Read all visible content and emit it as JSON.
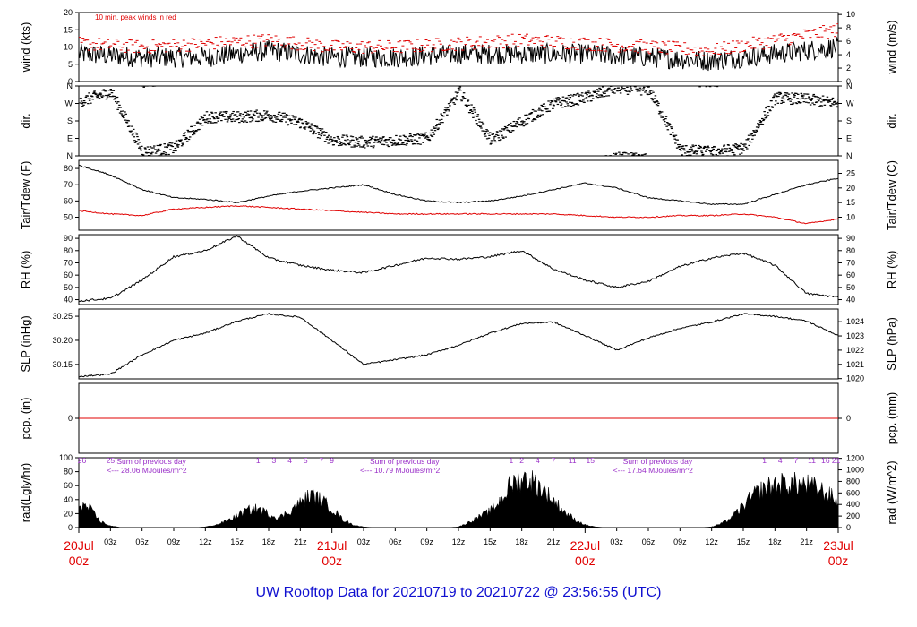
{
  "chart_data": {
    "type": "line",
    "title": "UW Rooftop Data for 20210719  to  20210722 @ 23:56:55  (UTC)",
    "time_axis": {
      "range_hours": [
        0,
        72
      ],
      "hour_ticks": [
        "03z",
        "06z",
        "09z",
        "12z",
        "15z",
        "18z",
        "21z",
        "03z",
        "06z",
        "09z",
        "12z",
        "15z",
        "18z",
        "21z",
        "03z",
        "06z",
        "09z",
        "12z",
        "15z",
        "18z",
        "21z"
      ],
      "day_labels": [
        {
          "date": "20Jul",
          "time": "00z",
          "hour": 0
        },
        {
          "date": "21Jul",
          "time": "00z",
          "hour": 24
        },
        {
          "date": "22Jul",
          "time": "00z",
          "hour": 48
        },
        {
          "date": "23Jul",
          "time": "00z",
          "hour": 72
        }
      ]
    },
    "panels": [
      {
        "id": "wind",
        "ylabel_left": "wind (kts)",
        "ylabel_right": "wind (m/s)",
        "ylim": [
          0,
          20
        ],
        "yticks_left": [
          "0",
          "5",
          "10",
          "15",
          "20"
        ],
        "yticks_right": [
          "0",
          "2",
          "4",
          "6",
          "8",
          "10"
        ],
        "annotation": "10 min. peak winds in red",
        "series": [
          {
            "name": "wind",
            "color": "#000000",
            "style": "noisy",
            "hours": [
              0,
              6,
              12,
              18,
              24,
              30,
              36,
              42,
              48,
              54,
              60,
              66,
              72
            ],
            "values": [
              8,
              7,
              7,
              9,
              7,
              7,
              8,
              8,
              8,
              7,
              6,
              8,
              10
            ]
          },
          {
            "name": "peak",
            "color": "#e00000",
            "style": "dash",
            "hours": [
              0,
              6,
              12,
              18,
              24,
              30,
              36,
              42,
              48,
              54,
              60,
              66,
              72
            ],
            "values": [
              11,
              10,
              11,
              12,
              10,
              10,
              11,
              12,
              11,
              10,
              9,
              12,
              15
            ]
          }
        ]
      },
      {
        "id": "dir",
        "ylabel_left": "dir.",
        "ylabel_right": "dir.",
        "ylim": [
          0,
          360
        ],
        "yticks_left": [
          "N",
          "W",
          "S",
          "E",
          "N"
        ],
        "yticks_right": [
          "N",
          "W",
          "S",
          "E",
          "N"
        ],
        "series": [
          {
            "name": "direction",
            "color": "#000000",
            "style": "scatter",
            "hours": [
              0,
              3,
              6,
              9,
              12,
              15,
              18,
              21,
              24,
              27,
              30,
              33,
              36,
              39,
              42,
              45,
              48,
              51,
              54,
              57,
              60,
              63,
              66,
              69,
              72
            ],
            "values": [
              280,
              330,
              20,
              40,
              200,
              200,
              210,
              170,
              80,
              70,
              80,
              90,
              330,
              80,
              180,
              270,
              300,
              350,
              340,
              30,
              20,
              40,
              300,
              290,
              270
            ]
          }
        ]
      },
      {
        "id": "temp",
        "ylabel_left": "Tair/Tdew (F)",
        "ylabel_right": "Tair/Tdew (C)",
        "ylim": [
          42,
          85
        ],
        "yticks_left": [
          "50",
          "60",
          "70",
          "80"
        ],
        "yticks_right": [
          "10",
          "15",
          "20",
          "25"
        ],
        "series": [
          {
            "name": "Tair",
            "color": "#000000",
            "style": "line",
            "hours": [
              0,
              3,
              6,
              9,
              12,
              15,
              18,
              21,
              24,
              27,
              30,
              33,
              36,
              39,
              42,
              45,
              48,
              51,
              54,
              57,
              60,
              63,
              66,
              69,
              72
            ],
            "values": [
              82,
              76,
              67,
              62,
              61,
              59,
              63,
              66,
              68,
              70,
              64,
              60,
              59,
              60,
              63,
              67,
              71,
              68,
              62,
              60,
              58,
              58,
              64,
              70,
              74
            ]
          },
          {
            "name": "Tdew",
            "color": "#e00000",
            "style": "line",
            "hours": [
              0,
              3,
              6,
              9,
              12,
              15,
              18,
              21,
              24,
              27,
              30,
              33,
              36,
              39,
              42,
              45,
              48,
              51,
              54,
              57,
              60,
              63,
              66,
              69,
              72
            ],
            "values": [
              54,
              52,
              51,
              55,
              56,
              57,
              56,
              55,
              54,
              53,
              52,
              52,
              52,
              52,
              52,
              52,
              51,
              50,
              50,
              51,
              51,
              52,
              50,
              46,
              49
            ]
          }
        ]
      },
      {
        "id": "rh",
        "ylabel_left": "RH (%)",
        "ylabel_right": "RH (%)",
        "ylim": [
          36,
          93
        ],
        "yticks_left": [
          "40",
          "50",
          "60",
          "70",
          "80",
          "90"
        ],
        "yticks_right": [
          "40",
          "50",
          "60",
          "70",
          "80",
          "90"
        ],
        "series": [
          {
            "name": "RH",
            "color": "#000000",
            "style": "line",
            "hours": [
              0,
              3,
              6,
              9,
              12,
              15,
              18,
              21,
              24,
              27,
              30,
              33,
              36,
              39,
              42,
              45,
              48,
              51,
              54,
              57,
              60,
              63,
              66,
              69,
              72
            ],
            "values": [
              39,
              41,
              56,
              75,
              80,
              92,
              74,
              68,
              64,
              62,
              68,
              74,
              73,
              75,
              80,
              65,
              56,
              50,
              55,
              67,
              74,
              78,
              68,
              45,
              42
            ]
          }
        ]
      },
      {
        "id": "slp",
        "ylabel_left": "SLP (inHg)",
        "ylabel_right": "SLP (hPa)",
        "ylim": [
          30.12,
          30.265
        ],
        "yticks_left": [
          "30.15",
          "30.20",
          "30.25"
        ],
        "yticks_right": [
          "1020",
          "1021",
          "1022",
          "1023",
          "1024"
        ],
        "series": [
          {
            "name": "SLP",
            "color": "#000000",
            "style": "line",
            "hours": [
              0,
              3,
              6,
              9,
              12,
              15,
              18,
              21,
              24,
              27,
              30,
              33,
              36,
              39,
              42,
              45,
              48,
              51,
              54,
              57,
              60,
              63,
              66,
              69,
              72
            ],
            "values": [
              30.125,
              30.13,
              30.17,
              30.2,
              30.215,
              30.24,
              30.255,
              30.248,
              30.2,
              30.15,
              30.16,
              30.17,
              30.19,
              30.215,
              30.235,
              30.238,
              30.21,
              30.18,
              30.205,
              30.225,
              30.238,
              30.255,
              30.25,
              30.24,
              30.21
            ]
          }
        ]
      },
      {
        "id": "pcp",
        "ylabel_left": "pcp. (in)",
        "ylabel_right": "pcp. (mm)",
        "ylim": [
          -1,
          1
        ],
        "yticks_left": [
          "0"
        ],
        "yticks_right": [
          "0"
        ],
        "series": [
          {
            "name": "pcp",
            "color": "#e00000",
            "style": "line",
            "hours": [
              0,
              72
            ],
            "values": [
              0,
              0
            ]
          }
        ]
      },
      {
        "id": "rad",
        "ylabel_left": "rad(Lgly/hr)",
        "ylabel_right": "rad (W/m^2)",
        "ylim": [
          0,
          100
        ],
        "yticks_left": [
          "0",
          "20",
          "40",
          "60",
          "80",
          "100"
        ],
        "yticks_right": [
          "0",
          "200",
          "400",
          "600",
          "800",
          "1000",
          "1200"
        ],
        "series": [
          {
            "name": "radiation",
            "color": "#000000",
            "style": "area",
            "hours": [
              0,
              1,
              2,
              3,
              4,
              11,
              12,
              13,
              14,
              15,
              16,
              17,
              18,
              19,
              20,
              21,
              22,
              23,
              24,
              25,
              26,
              27,
              28,
              35,
              36,
              37,
              38,
              39,
              40,
              41,
              42,
              43,
              44,
              45,
              46,
              47,
              48,
              49,
              50,
              51,
              52,
              59,
              60,
              61,
              62,
              63,
              64,
              65,
              66,
              67,
              68,
              69,
              70,
              71,
              72
            ],
            "values": [
              44,
              35,
              12,
              3,
              0,
              0,
              1,
              5,
              12,
              22,
              32,
              35,
              25,
              18,
              30,
              45,
              60,
              50,
              35,
              15,
              5,
              1,
              0,
              0,
              1,
              10,
              20,
              30,
              50,
              80,
              90,
              85,
              70,
              50,
              30,
              15,
              5,
              1,
              0,
              0,
              0,
              0,
              1,
              8,
              20,
              40,
              60,
              72,
              78,
              80,
              80,
              78,
              72,
              62,
              48
            ]
          }
        ],
        "sum_notes": [
          {
            "label": "Sum of previous day",
            "value": "<--- 28.06 MJoules/m^2",
            "hour": 3
          },
          {
            "label": "Sum of previous day",
            "value": "<--- 10.79 MJoules/m^2",
            "hour": 27
          },
          {
            "label": "Sum of previous day",
            "value": "<--- 17.64 MJoules/m^2",
            "hour": 51
          }
        ],
        "hour_numbers": [
          {
            "text": "26",
            "hour": 0.3
          },
          {
            "text": "25",
            "hour": 3
          },
          {
            "text": "1",
            "hour": 17
          },
          {
            "text": "3",
            "hour": 18.5
          },
          {
            "text": "4",
            "hour": 20
          },
          {
            "text": "5",
            "hour": 21.5
          },
          {
            "text": "7",
            "hour": 23
          },
          {
            "text": "9",
            "hour": 24
          },
          {
            "text": "1",
            "hour": 41
          },
          {
            "text": "2",
            "hour": 42
          },
          {
            "text": "4",
            "hour": 43.5
          },
          {
            "text": "7",
            "hour": 45
          },
          {
            "text": "11",
            "hour": 46.8
          },
          {
            "text": "15",
            "hour": 48.5
          },
          {
            "text": "1",
            "hour": 65
          },
          {
            "text": "4",
            "hour": 66.5
          },
          {
            "text": "7",
            "hour": 68
          },
          {
            "text": "11",
            "hour": 69.5
          },
          {
            "text": "16",
            "hour": 70.8
          },
          {
            "text": "21",
            "hour": 71.8
          }
        ]
      }
    ]
  }
}
